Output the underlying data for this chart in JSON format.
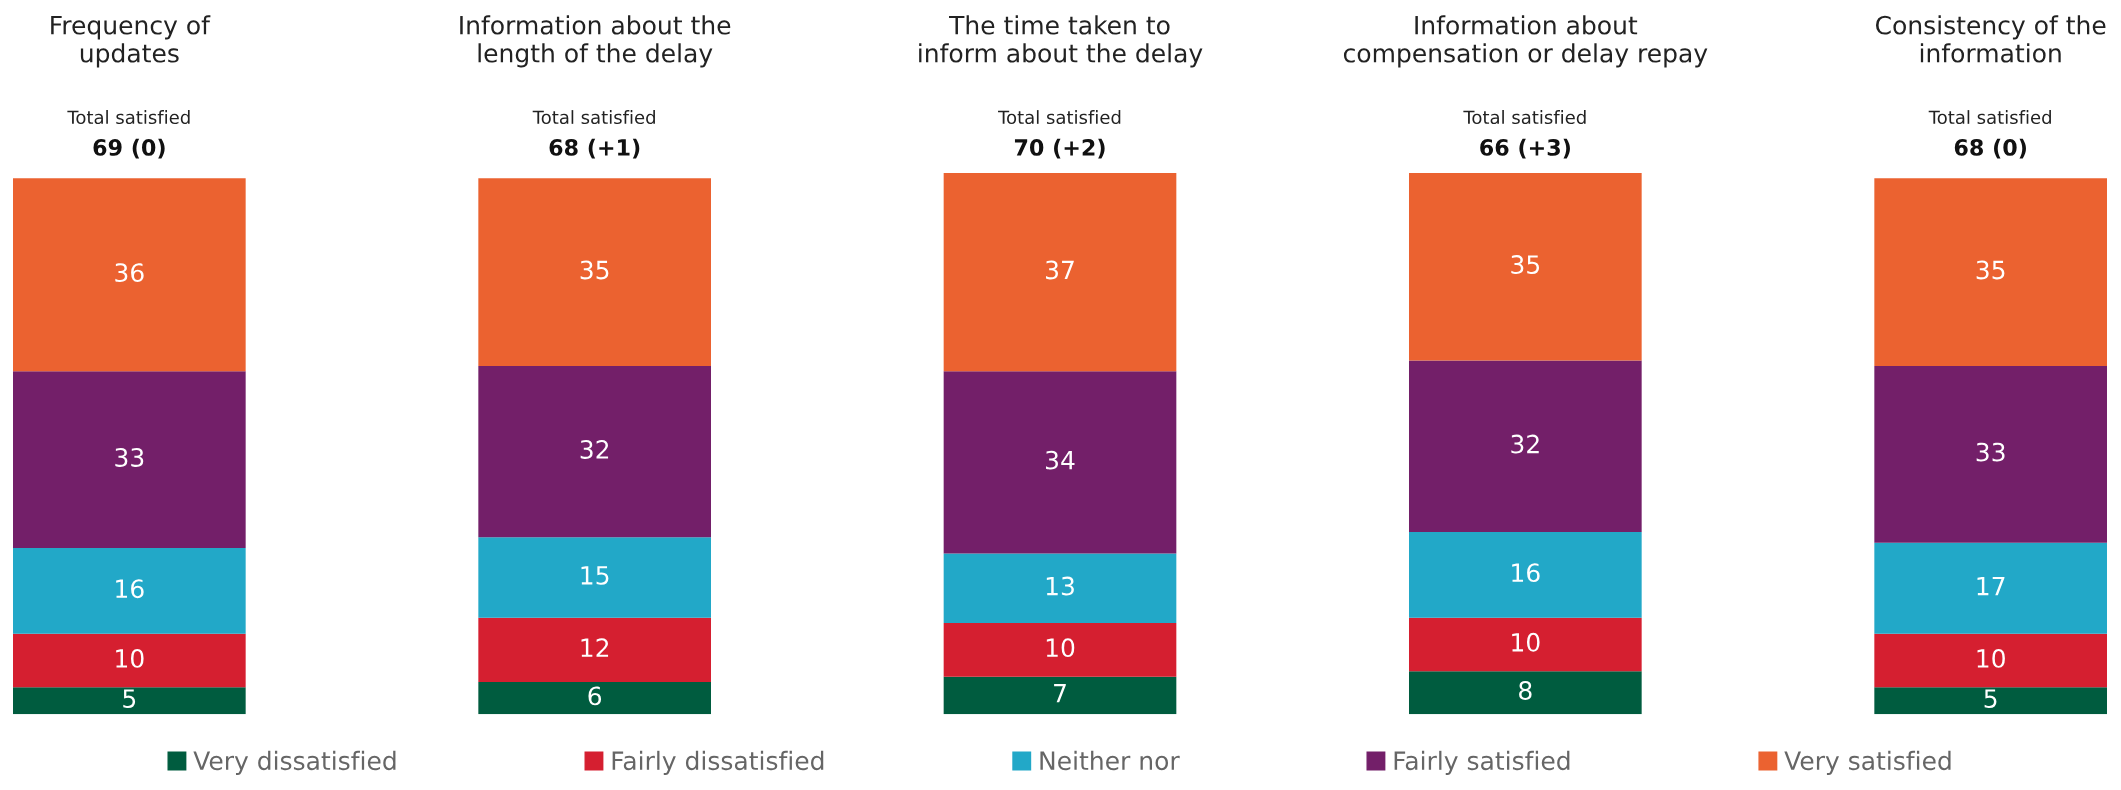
{
  "chart_data": {
    "type": "bar",
    "stacked": true,
    "data_labels": true,
    "legend": "bottom",
    "tick_labels": false,
    "ylim": [
      0,
      101
    ],
    "categories": [
      "Frequency of\nupdates",
      "Information about the\nlength of the delay",
      "The time taken to\ninform about the delay",
      "Information about\ncompensation or delay repay",
      "Consistency of the\ninformation"
    ],
    "series": [
      {
        "name": "Very dissatisfied",
        "color": "#005c3f",
        "values": [
          5,
          6,
          7,
          8,
          5
        ]
      },
      {
        "name": "Fairly dissatisfied",
        "color": "#d51f30",
        "values": [
          10,
          12,
          10,
          10,
          10
        ]
      },
      {
        "name": "Neither nor",
        "color": "#22a8c8",
        "values": [
          16,
          15,
          13,
          16,
          17
        ]
      },
      {
        "name": "Fairly satisfied",
        "color": "#731f69",
        "values": [
          33,
          32,
          34,
          32,
          33
        ]
      },
      {
        "name": "Very satisfied",
        "color": "#eb6230",
        "values": [
          36,
          35,
          37,
          35,
          35
        ]
      }
    ],
    "totals": [
      "69 (0)",
      "68 (+1)",
      "70 (+2)",
      "66 (+3)",
      "68 (0)"
    ],
    "annotations": [
      "Total satisfied",
      "Total satisfied",
      "Total satisfied",
      "Total satisfied",
      "Total satisfied"
    ]
  }
}
